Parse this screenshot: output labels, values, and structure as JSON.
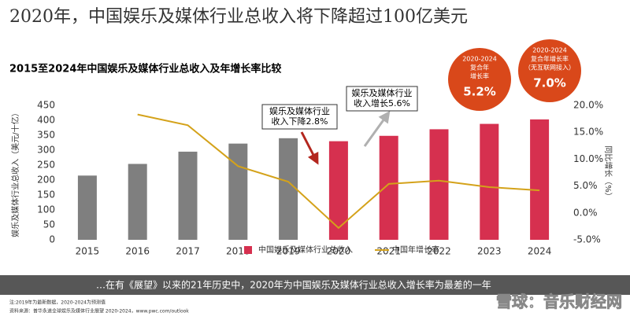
{
  "chart_data": {
    "type": "bar_line",
    "title": "2020年，中国娱乐及媒体行业总收入将下降超过100亿美元",
    "subtitle": "2015至2024年中国娱乐及媒体行业总收入及年增长率比较",
    "y_label": "娱乐及媒体行业总收入（美元/十亿）",
    "y2_label": "同比增长（%）",
    "categories": [
      "2015",
      "2016",
      "2017",
      "2018",
      "2019",
      "2020",
      "2021",
      "2022",
      "2023",
      "2024"
    ],
    "series": [
      {
        "name": "中国娱乐及媒体行业总收入",
        "type": "bar",
        "color": "#d6304f",
        "colors": [
          "#7f7f7f",
          "#7f7f7f",
          "#7f7f7f",
          "#7f7f7f",
          "#7f7f7f",
          "#d6304f",
          "#d6304f",
          "#d6304f",
          "#d6304f",
          "#d6304f"
        ],
        "values": [
          215,
          254,
          295,
          322,
          340,
          330,
          348,
          370,
          388,
          403
        ]
      },
      {
        "name": "中国年增长率",
        "type": "line",
        "color": "#d4a21a",
        "axis": "y2",
        "values": [
          null,
          18.3,
          16.3,
          8.7,
          5.8,
          -2.8,
          5.4,
          6.0,
          4.8,
          4.2
        ]
      }
    ],
    "ylim": [
      0,
      450
    ],
    "yticks": [
      0,
      50,
      100,
      150,
      200,
      250,
      300,
      350,
      400,
      450
    ],
    "y2lim": [
      -5,
      20
    ],
    "y2ticks": [
      {
        "value": -5,
        "label": "-5.0%"
      },
      {
        "value": 0,
        "label": "0.0%"
      },
      {
        "value": 5,
        "label": "5.0%"
      },
      {
        "value": 10,
        "label": "10.0%"
      },
      {
        "value": 15,
        "label": "15.0%"
      },
      {
        "value": 20,
        "label": "20.0%"
      }
    ],
    "annotations": [
      {
        "lines": [
          "娱乐及媒体行业",
          "收入下降2.8%"
        ]
      },
      {
        "lines": [
          "娱乐及媒体行业",
          "收入增长5.6%"
        ]
      }
    ],
    "callouts": [
      {
        "lines": [
          "2020-2024",
          "复合年",
          "增长率"
        ],
        "figure": "5.2%"
      },
      {
        "lines": [
          "2020-2024",
          "复合年增长率",
          "（无互联网接入）"
        ],
        "figure": "7.0%"
      }
    ],
    "banner": "…在有《展望》以来的21年历史中，2020年为中国娱乐及媒体行业总收入增长率为最差的一年",
    "notes": [
      "注:2019年为最新数据，2020-2024为预测值",
      "资料来源：普华永道全球娱乐及媒体行业展望 2020-2024，www.pwc.com/outlook"
    ],
    "watermark": "雪球：音乐财经网"
  }
}
